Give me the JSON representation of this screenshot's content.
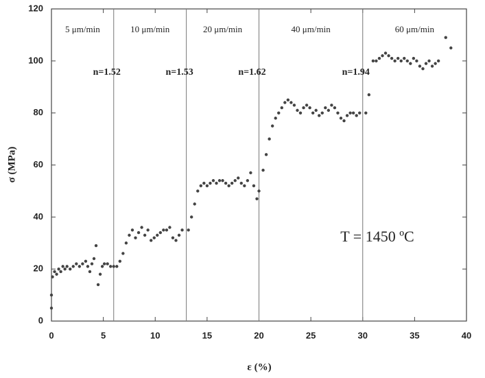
{
  "chart_data": {
    "type": "scatter",
    "x_label": "ε (%)",
    "y_label": "σ (MPa)",
    "xlim": [
      0,
      40
    ],
    "ylim": [
      0,
      120
    ],
    "xticks": [
      0,
      5,
      10,
      15,
      20,
      25,
      30,
      35,
      40
    ],
    "yticks": [
      0,
      20,
      40,
      60,
      80,
      100,
      120
    ],
    "color": "#444444",
    "dividers": [
      6,
      13,
      20,
      30
    ],
    "segment_labels": [
      "5 μm/min",
      "10 μm/min",
      "20 μm/min",
      "40 μm/min",
      "60 μm/min"
    ],
    "n_labels": [
      "n=1.52",
      "n=1.53",
      "n=1.62",
      "n=1.94"
    ],
    "annotation": "T = 1450 ºC",
    "x": [
      0,
      0,
      0.1,
      0.3,
      0.5,
      0.7,
      0.9,
      1.1,
      1.3,
      1.5,
      1.8,
      2.1,
      2.4,
      2.7,
      3,
      3.3,
      3.5,
      3.7,
      3.9,
      4.1,
      4.3,
      4.5,
      4.7,
      4.9,
      5.1,
      5.4,
      5.7,
      6,
      6.3,
      6.6,
      6.9,
      7.2,
      7.5,
      7.8,
      8.1,
      8.4,
      8.7,
      9,
      9.3,
      9.6,
      9.9,
      10.2,
      10.5,
      10.8,
      11.1,
      11.4,
      11.7,
      12,
      12.3,
      12.6,
      13.2,
      13.5,
      13.8,
      14.1,
      14.4,
      14.7,
      15,
      15.3,
      15.6,
      15.9,
      16.2,
      16.5,
      16.8,
      17.1,
      17.4,
      17.7,
      18,
      18.3,
      18.6,
      18.9,
      19.2,
      19.5,
      19.8,
      20,
      20.4,
      20.7,
      21,
      21.3,
      21.6,
      21.9,
      22.2,
      22.5,
      22.8,
      23.1,
      23.4,
      23.7,
      24,
      24.3,
      24.6,
      24.9,
      25.2,
      25.5,
      25.8,
      26.1,
      26.4,
      26.7,
      27,
      27.3,
      27.6,
      27.9,
      28.2,
      28.5,
      28.8,
      29.1,
      29.4,
      29.7,
      30.3,
      30.6,
      31,
      31.3,
      31.6,
      31.9,
      32.2,
      32.5,
      32.8,
      33.1,
      33.4,
      33.7,
      34,
      34.3,
      34.6,
      34.9,
      35.2,
      35.5,
      35.8,
      36.1,
      36.4,
      36.7,
      37,
      37.3,
      38,
      38.5
    ],
    "values": [
      5,
      10,
      17,
      19,
      18,
      20,
      19,
      21,
      20,
      21,
      20,
      21,
      22,
      21,
      22,
      23,
      21,
      19,
      22,
      24,
      29,
      14,
      18,
      21,
      22,
      22,
      21,
      21,
      21,
      23,
      26,
      30,
      33,
      35,
      32,
      34,
      36,
      33,
      35,
      31,
      32,
      33,
      34,
      35,
      35,
      36,
      32,
      31,
      33,
      35,
      35,
      40,
      45,
      50,
      52,
      53,
      52,
      53,
      54,
      53,
      54,
      54,
      53,
      52,
      53,
      54,
      55,
      53,
      52,
      54,
      57,
      52,
      47,
      50,
      58,
      64,
      70,
      75,
      78,
      80,
      82,
      84,
      85,
      84,
      83,
      81,
      80,
      82,
      83,
      82,
      80,
      81,
      79,
      80,
      82,
      81,
      83,
      82,
      80,
      78,
      77,
      79,
      80,
      80,
      79,
      80,
      80,
      87,
      100,
      100,
      101,
      102,
      103,
      102,
      101,
      100,
      101,
      100,
      101,
      100,
      99,
      101,
      100,
      98,
      97,
      99,
      100,
      98,
      99,
      100,
      109,
      105
    ]
  }
}
